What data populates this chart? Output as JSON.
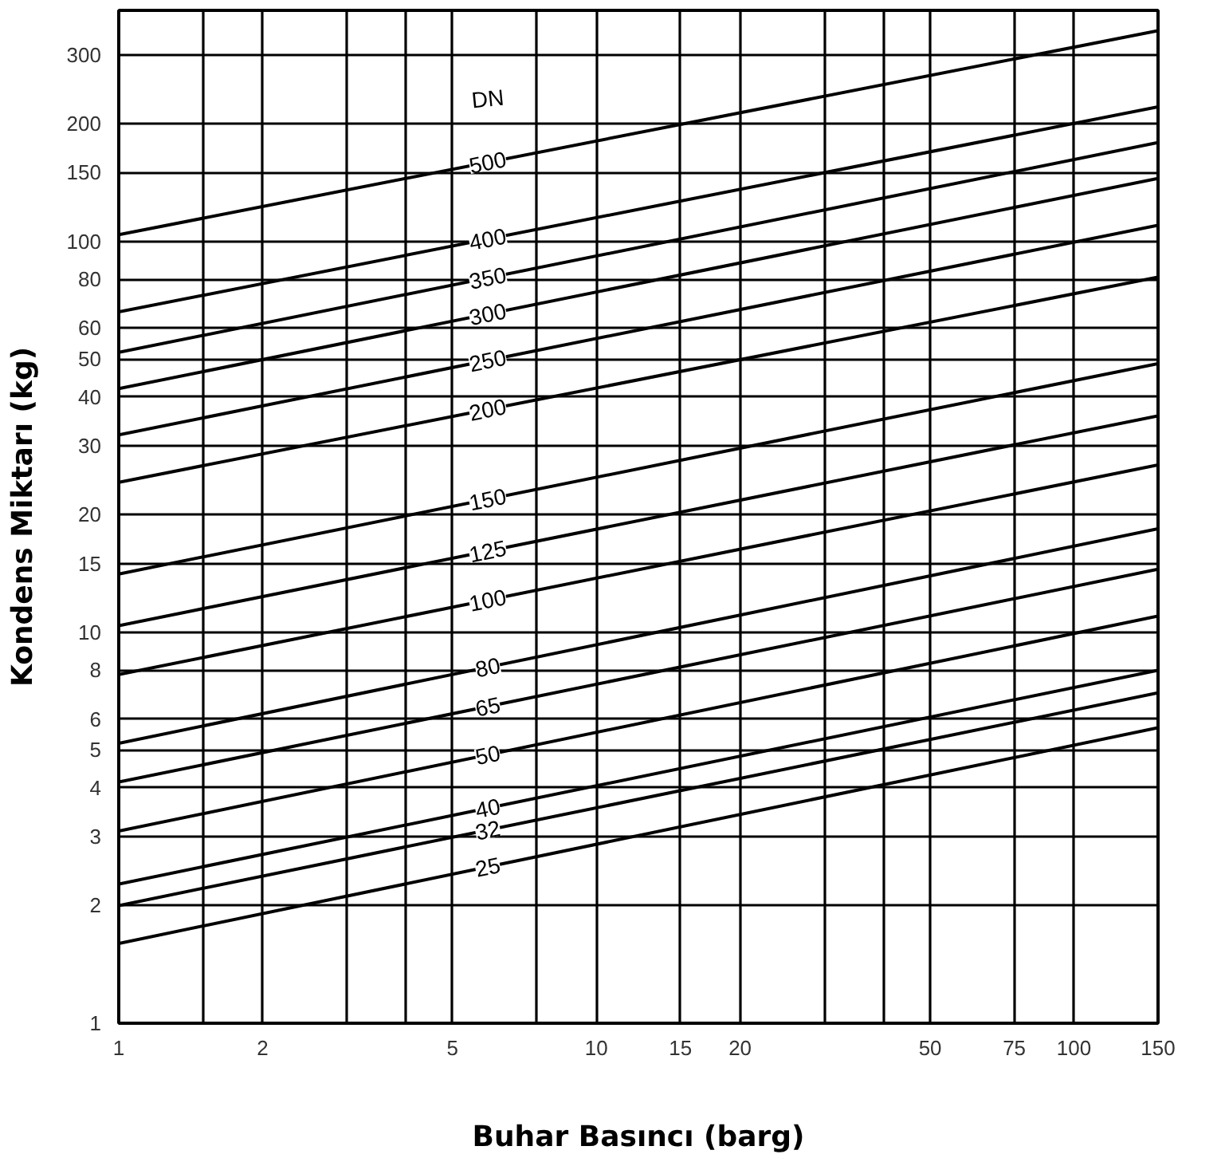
{
  "chart_data": {
    "type": "line",
    "xlabel": "Buhar Basıncı (barg)",
    "ylabel": "Kondens Miktarı (kg)",
    "legend_title": "DN",
    "x": [
      1,
      150
    ],
    "series": [
      {
        "name": "500",
        "color": "#000000",
        "values": [
          104,
          346
        ]
      },
      {
        "name": "400",
        "color": "#000000",
        "values": [
          66,
          221
        ]
      },
      {
        "name": "350",
        "color": "#000000",
        "values": [
          52,
          179
        ]
      },
      {
        "name": "300",
        "color": "#000000",
        "values": [
          42,
          145
        ]
      },
      {
        "name": "250",
        "color": "#000000",
        "values": [
          32,
          110
        ]
      },
      {
        "name": "200",
        "color": "#000000",
        "values": [
          24.2,
          81
        ]
      },
      {
        "name": "150",
        "color": "#000000",
        "values": [
          14.1,
          48.7
        ]
      },
      {
        "name": "125",
        "color": "#000000",
        "values": [
          10.4,
          35.8
        ]
      },
      {
        "name": "100",
        "color": "#000000",
        "values": [
          7.8,
          26.8
        ]
      },
      {
        "name": "80",
        "color": "#000000",
        "values": [
          5.2,
          18.4
        ]
      },
      {
        "name": "65",
        "color": "#000000",
        "values": [
          4.14,
          14.5
        ]
      },
      {
        "name": "50",
        "color": "#000000",
        "values": [
          3.1,
          11.0
        ]
      },
      {
        "name": "40",
        "color": "#000000",
        "values": [
          2.27,
          8.0
        ]
      },
      {
        "name": "32",
        "color": "#000000",
        "values": [
          2.0,
          7.0
        ]
      },
      {
        "name": "25",
        "color": "#000000",
        "values": [
          1.6,
          5.7
        ]
      }
    ],
    "log": "xy",
    "xlim": [
      1,
      150
    ],
    "ylim": [
      1,
      390
    ],
    "xticks": [
      1,
      {
        "value": 1.5,
        "label": null
      },
      2,
      {
        "value": 3,
        "label": null
      },
      {
        "value": 4,
        "label": null
      },
      5,
      {
        "value": 7.5,
        "label": null
      },
      10,
      15,
      20,
      {
        "value": 30,
        "label": null
      },
      {
        "value": 40,
        "label": null
      },
      50,
      75,
      100,
      150
    ],
    "yticks": [
      1,
      2,
      3,
      4,
      5,
      6,
      8,
      10,
      15,
      20,
      30,
      40,
      50,
      60,
      80,
      100,
      150,
      200,
      300
    ],
    "grid": true,
    "marker": "none",
    "line_style": "solid"
  }
}
